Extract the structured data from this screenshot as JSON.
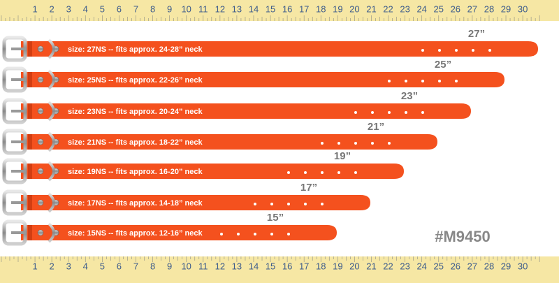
{
  "ruler": {
    "numbers": [
      1,
      2,
      3,
      4,
      5,
      6,
      7,
      8,
      9,
      10,
      11,
      12,
      13,
      14,
      15,
      16,
      17,
      18,
      19,
      20,
      21,
      22,
      23,
      24,
      25,
      26,
      27,
      28,
      29,
      30
    ]
  },
  "collars": [
    {
      "label": "size: 27NS -- fits approx. 24-28” neck",
      "size": "27”"
    },
    {
      "label": "size: 25NS -- fits approx. 22-26” neck",
      "size": "25”"
    },
    {
      "label": "size: 23NS -- fits approx. 20-24” neck",
      "size": "23”"
    },
    {
      "label": "size: 21NS -- fits approx. 18-22” neck",
      "size": "21”"
    },
    {
      "label": "size: 19NS -- fits approx. 16-20” neck",
      "size": "19”"
    },
    {
      "label": "size: 17NS -- fits approx. 14-18” neck",
      "size": "17”"
    },
    {
      "label": "size: 15NS -- fits approx. 12-16” neck",
      "size": "15”"
    }
  ],
  "product_code": "#M9450"
}
